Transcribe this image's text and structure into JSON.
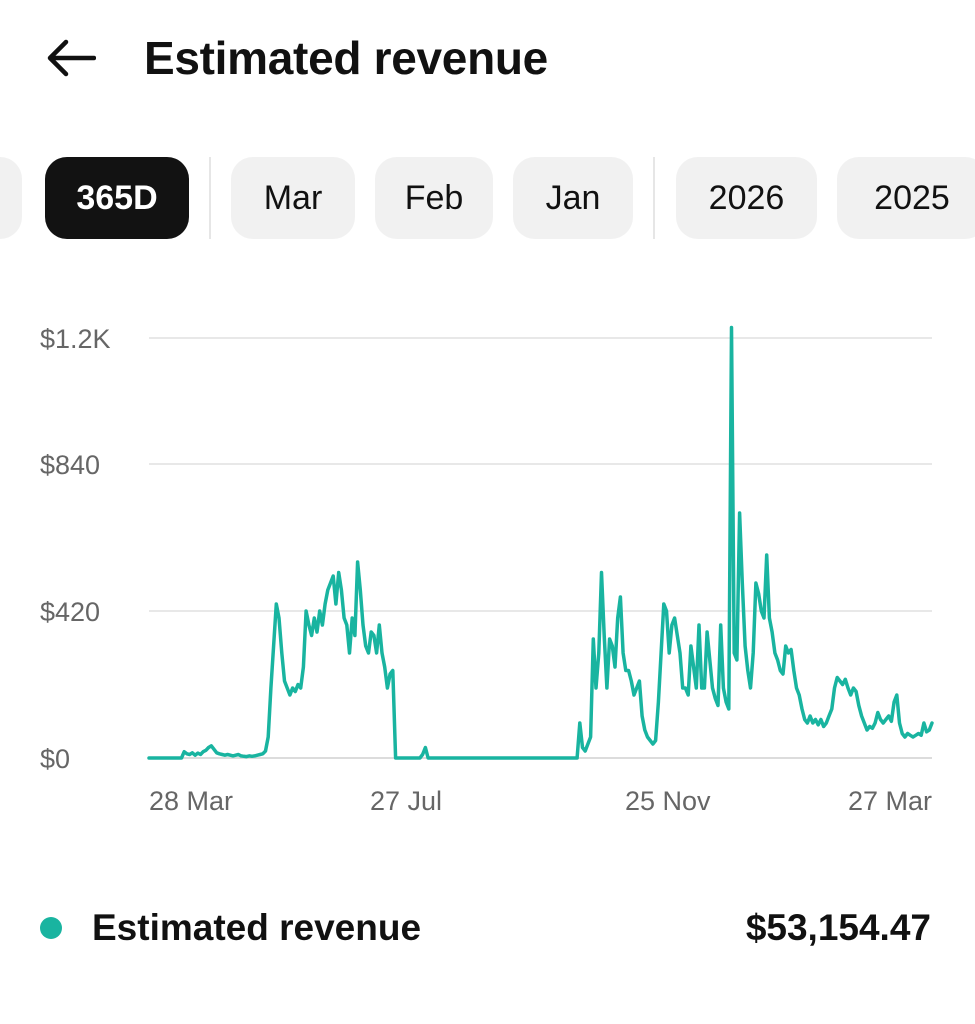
{
  "header": {
    "title": "Estimated revenue",
    "back_icon": "arrow-left-icon"
  },
  "tabs": [
    {
      "label": "365D",
      "active": true
    },
    {
      "label": "Mar",
      "active": false
    },
    {
      "label": "Feb",
      "active": false
    },
    {
      "label": "Jan",
      "active": false
    },
    {
      "label": "2026",
      "active": false
    },
    {
      "label": "2025",
      "active": false
    }
  ],
  "colors": {
    "accent": "#19b4a0",
    "active_tab_bg": "#121212",
    "tab_bg": "#f1f1f1"
  },
  "chart_data": {
    "type": "line",
    "y_tick_labels": [
      "$0",
      "$420",
      "$840",
      "$1.2K"
    ],
    "x_tick_labels": [
      "28 Mar",
      "27 Jul",
      "25 Nov",
      "27 Mar"
    ],
    "ylim": [
      0,
      1260
    ],
    "grid": true,
    "series": [
      {
        "values": [
          0,
          0,
          0,
          0,
          0,
          0,
          0,
          0,
          0,
          0,
          0,
          0,
          0,
          18,
          12,
          10,
          15,
          8,
          14,
          10,
          18,
          22,
          30,
          35,
          25,
          15,
          12,
          10,
          8,
          10,
          8,
          6,
          8,
          10,
          6,
          5,
          4,
          6,
          5,
          6,
          8,
          10,
          12,
          20,
          60,
          200,
          320,
          440,
          400,
          300,
          220,
          200,
          180,
          200,
          190,
          210,
          200,
          260,
          420,
          380,
          350,
          400,
          360,
          420,
          380,
          440,
          480,
          500,
          520,
          440,
          530,
          480,
          400,
          380,
          300,
          400,
          350,
          560,
          480,
          380,
          320,
          300,
          360,
          350,
          300,
          380,
          300,
          260,
          200,
          240,
          250,
          0,
          0,
          0,
          0,
          0,
          0,
          0,
          0,
          0,
          0,
          10,
          30,
          0,
          0,
          0,
          0,
          0,
          0,
          0,
          0,
          0,
          0,
          0,
          0,
          0,
          0,
          0,
          0,
          0,
          0,
          0,
          0,
          0,
          0,
          0,
          0,
          0,
          0,
          0,
          0,
          0,
          0,
          0,
          0,
          0,
          0,
          0,
          0,
          0,
          0,
          0,
          0,
          0,
          0,
          0,
          0,
          0,
          0,
          0,
          0,
          0,
          0,
          0,
          0,
          0,
          0,
          0,
          0,
          100,
          30,
          20,
          40,
          60,
          340,
          200,
          300,
          530,
          350,
          200,
          340,
          320,
          260,
          400,
          460,
          300,
          250,
          250,
          220,
          180,
          200,
          220,
          120,
          80,
          60,
          50,
          40,
          50,
          160,
          300,
          440,
          420,
          300,
          380,
          400,
          350,
          300,
          200,
          200,
          180,
          320,
          260,
          200,
          380,
          200,
          200,
          360,
          280,
          200,
          170,
          150,
          380,
          200,
          160,
          140,
          1230,
          300,
          280,
          700,
          500,
          320,
          250,
          200,
          300,
          500,
          470,
          420,
          400,
          580,
          400,
          360,
          300,
          280,
          250,
          240,
          320,
          300,
          310,
          250,
          200,
          180,
          140,
          110,
          100,
          120,
          100,
          110,
          95,
          110,
          90,
          100,
          120,
          140,
          200,
          230,
          220,
          210,
          225,
          200,
          180,
          200,
          190,
          150,
          120,
          100,
          80,
          90,
          85,
          100,
          130,
          110,
          100,
          110,
          120,
          105,
          160,
          180,
          100,
          70,
          60,
          70,
          65,
          60,
          65,
          70,
          65,
          100,
          75,
          80,
          100
        ]
      }
    ]
  },
  "legend": {
    "label": "Estimated revenue",
    "value": "$53,154.47"
  }
}
